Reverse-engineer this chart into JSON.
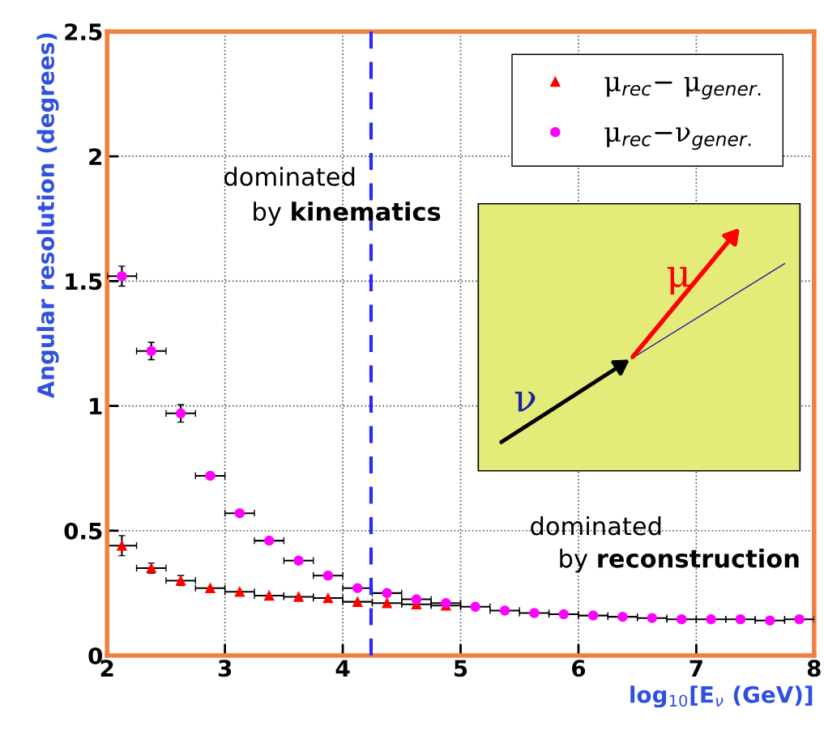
{
  "chart_data": {
    "type": "scatter",
    "xlabel": "log$_{10}$[E$_{ν}$ (GeV)]",
    "ylabel": "Angular resolution (degrees)",
    "x": [
      2.125,
      2.375,
      2.625,
      2.875,
      3.125,
      3.375,
      3.625,
      3.875,
      4.125,
      4.375,
      4.625,
      4.875,
      5.125,
      5.375,
      5.625,
      5.875,
      6.125,
      6.375,
      6.625,
      6.875,
      7.125,
      7.375,
      7.625,
      7.875
    ],
    "series": [
      {
        "name": "μ$_{rec}$− μ$_{gener.}$",
        "color": "#ff0000",
        "marker": "triangle",
        "xerrors": [
          0.125,
          0.125,
          0.125,
          0.125,
          0.125,
          0.125,
          0.125,
          0.125,
          0.125,
          0.125,
          0.125,
          0.125,
          null,
          null,
          null,
          null,
          null,
          null,
          null,
          null,
          null,
          null,
          null,
          null
        ],
        "values": [
          0.44,
          0.35,
          0.3,
          0.27,
          0.255,
          0.24,
          0.235,
          0.23,
          0.215,
          0.21,
          0.205,
          0.2,
          null,
          null,
          null,
          null,
          null,
          null,
          null,
          null,
          null,
          null,
          null,
          null
        ],
        "errors": [
          0.04,
          0.02,
          0.02,
          null,
          null,
          null,
          null,
          null,
          null,
          null,
          null,
          null,
          null,
          null,
          null,
          null,
          null,
          null,
          null,
          null,
          null,
          null,
          null,
          null
        ]
      },
      {
        "name": "μ$_{rec}$−ν$_{gener.}$",
        "color": "#ff00ff",
        "marker": "circle",
        "xerrors": [
          0.125,
          0.125,
          0.125,
          0.125,
          0.125,
          0.125,
          0.125,
          0.125,
          0.125,
          0.125,
          0.125,
          0.125,
          0.125,
          0.125,
          0.125,
          0.125,
          0.125,
          0.125,
          0.125,
          0.125,
          0.125,
          0.125,
          0.125,
          0.125
        ],
        "values": [
          1.52,
          1.22,
          0.97,
          0.72,
          0.57,
          0.46,
          0.38,
          0.32,
          0.27,
          0.25,
          0.225,
          0.21,
          0.195,
          0.18,
          0.17,
          0.165,
          0.16,
          0.155,
          0.15,
          0.145,
          0.145,
          0.145,
          0.14,
          0.145
        ],
        "errors": [
          0.04,
          0.035,
          0.035,
          null,
          null,
          null,
          null,
          null,
          null,
          null,
          null,
          null,
          null,
          null,
          null,
          null,
          null,
          null,
          null,
          null,
          null,
          null,
          null,
          null
        ]
      }
    ],
    "xlim": [
      2,
      8
    ],
    "xticks": [
      2,
      3,
      4,
      5,
      6,
      7,
      8
    ],
    "ylim": [
      0,
      2.5
    ],
    "yticks": [
      0,
      0.5,
      1,
      1.5,
      2,
      2.5
    ],
    "grid": true,
    "legend": "top right",
    "ref_lines": [
      {
        "axis": "x",
        "value": 4.24,
        "color": "#2a2aff",
        "line_style": "dashed"
      }
    ],
    "annotations": [
      "dominated by kinematics",
      "dominated by reconstruction",
      "ν",
      "μ"
    ]
  }
}
